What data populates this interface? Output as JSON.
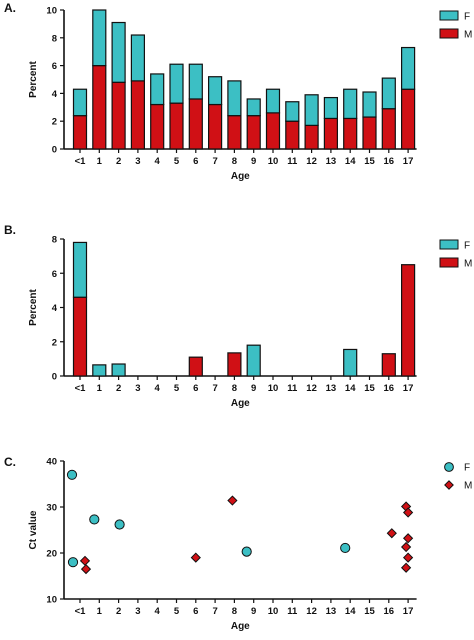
{
  "colors": {
    "F": "#3cbfc4",
    "M": "#d01015",
    "outline": "#111111"
  },
  "chart_data": [
    {
      "type": "bar",
      "stacked": true,
      "panel_label": "A.",
      "title": "",
      "xlabel": "Age",
      "ylabel": "Percent",
      "ylim": [
        0,
        10
      ],
      "yticks": [
        0,
        2,
        4,
        6,
        8,
        10
      ],
      "categories": [
        "<1",
        "1",
        "2",
        "3",
        "4",
        "5",
        "6",
        "7",
        "8",
        "9",
        "10",
        "11",
        "12",
        "13",
        "14",
        "15",
        "16",
        "17"
      ],
      "series": [
        {
          "name": "M",
          "values": [
            2.4,
            6.0,
            4.8,
            4.9,
            3.2,
            3.3,
            3.6,
            3.2,
            2.4,
            2.4,
            2.6,
            2.0,
            1.7,
            2.2,
            2.2,
            2.3,
            2.9,
            4.3
          ]
        },
        {
          "name": "F",
          "values": [
            1.9,
            4.0,
            4.3,
            3.3,
            2.2,
            2.8,
            2.5,
            2.0,
            2.5,
            1.2,
            1.7,
            1.4,
            2.2,
            1.5,
            2.1,
            1.8,
            2.2,
            3.0
          ]
        }
      ],
      "legend": [
        "F",
        "M"
      ],
      "legend_position": "top-right"
    },
    {
      "type": "bar",
      "stacked": true,
      "panel_label": "B.",
      "title": "",
      "xlabel": "Age",
      "ylabel": "Percent",
      "ylim": [
        0,
        8
      ],
      "yticks": [
        0,
        2,
        4,
        6,
        8
      ],
      "categories": [
        "<1",
        "1",
        "2",
        "3",
        "4",
        "5",
        "6",
        "7",
        "8",
        "9",
        "10",
        "11",
        "12",
        "13",
        "14",
        "15",
        "16",
        "17"
      ],
      "series": [
        {
          "name": "M",
          "values": [
            4.6,
            0,
            0,
            0,
            0,
            0,
            1.1,
            0,
            1.35,
            0,
            0,
            0,
            0,
            0,
            0,
            0,
            1.3,
            6.5
          ]
        },
        {
          "name": "F",
          "values": [
            3.2,
            0.65,
            0.7,
            0,
            0,
            0,
            0,
            0,
            0,
            1.8,
            0,
            0,
            0,
            0,
            1.55,
            0,
            0,
            0
          ]
        }
      ],
      "legend": [
        "F",
        "M"
      ],
      "legend_position": "top-right"
    },
    {
      "type": "scatter",
      "panel_label": "C.",
      "title": "",
      "xlabel": "Age",
      "ylabel": "Ct value",
      "ylim": [
        10,
        40
      ],
      "yticks": [
        10,
        20,
        30,
        40
      ],
      "categories": [
        "<1",
        "1",
        "2",
        "3",
        "4",
        "5",
        "6",
        "7",
        "8",
        "9",
        "10",
        "11",
        "12",
        "13",
        "14",
        "15",
        "16",
        "17"
      ],
      "series": [
        {
          "name": "F",
          "marker": "circle",
          "points": [
            {
              "x": "<1",
              "y": 37
            },
            {
              "x": "<1",
              "y": 18
            },
            {
              "x": "1",
              "y": 27.3
            },
            {
              "x": "2",
              "y": 26.2
            },
            {
              "x": "9",
              "y": 20.3
            },
            {
              "x": "14",
              "y": 21.1
            }
          ]
        },
        {
          "name": "M",
          "marker": "diamond",
          "points": [
            {
              "x": "<1",
              "y": 18.3
            },
            {
              "x": "<1",
              "y": 16.5
            },
            {
              "x": "6",
              "y": 19
            },
            {
              "x": "8",
              "y": 31.4
            },
            {
              "x": "16",
              "y": 24.3
            },
            {
              "x": "17",
              "y": 30.1
            },
            {
              "x": "17",
              "y": 28.8
            },
            {
              "x": "17",
              "y": 23.2
            },
            {
              "x": "17",
              "y": 21.3
            },
            {
              "x": "17",
              "y": 19
            },
            {
              "x": "17",
              "y": 16.8
            }
          ]
        }
      ],
      "legend": [
        "F",
        "M"
      ],
      "legend_position": "top-right"
    }
  ]
}
